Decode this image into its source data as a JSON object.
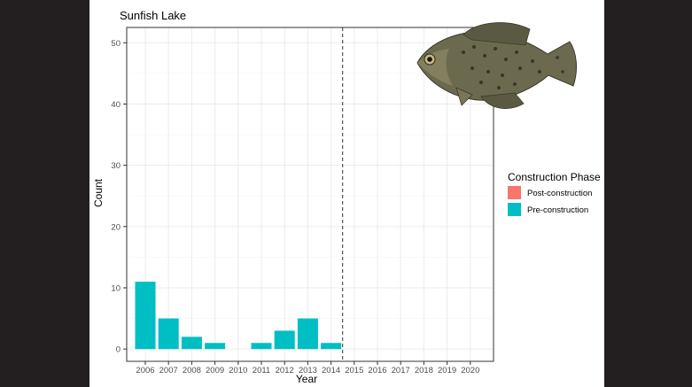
{
  "chart_data": {
    "type": "bar",
    "title": "Sunfish Lake",
    "xlabel": "Year",
    "ylabel": "Count",
    "categories": [
      "2006",
      "2007",
      "2008",
      "2009",
      "2010",
      "2011",
      "2012",
      "2013",
      "2014",
      "2015",
      "2016",
      "2017",
      "2018",
      "2019",
      "2020"
    ],
    "series": [
      {
        "name": "Post-construction",
        "color": "#f8766d",
        "values": [
          0,
          0,
          0,
          0,
          0,
          0,
          0,
          0,
          0,
          0,
          0,
          0,
          0,
          0,
          0
        ]
      },
      {
        "name": "Pre-construction",
        "color": "#00bfc4",
        "values": [
          11,
          5,
          2,
          1,
          0,
          1,
          3,
          5,
          1,
          0,
          0,
          0,
          0,
          0,
          0
        ]
      }
    ],
    "ylim": [
      -2,
      52.5
    ],
    "yticks": [
      0,
      10,
      20,
      30,
      40,
      50
    ],
    "grid": true,
    "legend_title": "Construction Phase",
    "legend_position": "right",
    "annotations": [
      {
        "type": "vline",
        "x_between": [
          "2014",
          "2015"
        ],
        "style": "dashed"
      },
      {
        "type": "image",
        "subject": "black crappie fish illustration",
        "placement": "top-right"
      }
    ]
  }
}
